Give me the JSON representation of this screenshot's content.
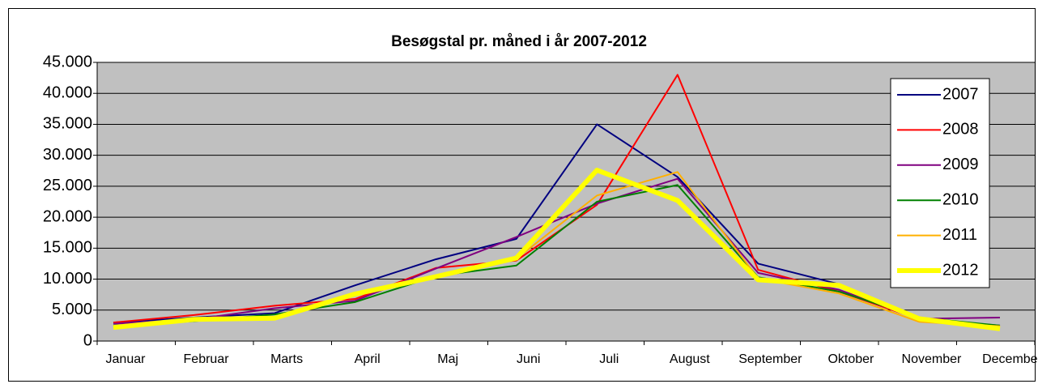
{
  "chart_data": {
    "type": "line",
    "title": "Besøgstal pr. måned i år 2007-2012",
    "categories": [
      "Januar",
      "Februar",
      "Marts",
      "April",
      "Maj",
      "Juni",
      "Juli",
      "August",
      "September",
      "Oktober",
      "November",
      "December"
    ],
    "series": [
      {
        "name": "2007",
        "color": "#000080",
        "width": 2,
        "values": [
          3000,
          3800,
          4500,
          9000,
          13200,
          16500,
          35000,
          26500,
          12500,
          9200,
          3500,
          2500
        ]
      },
      {
        "name": "2008",
        "color": "#ff0000",
        "width": 2,
        "values": [
          3000,
          4200,
          5700,
          6800,
          11800,
          13000,
          22000,
          43000,
          11500,
          8000,
          3500,
          2300
        ]
      },
      {
        "name": "2009",
        "color": "#800080",
        "width": 2,
        "values": [
          2800,
          3500,
          5300,
          6500,
          11700,
          16800,
          22200,
          26200,
          11000,
          8300,
          3600,
          3800
        ]
      },
      {
        "name": "2010",
        "color": "#008000",
        "width": 2,
        "values": [
          2500,
          3200,
          4300,
          6300,
          10500,
          12200,
          22500,
          25200,
          10300,
          8000,
          3800,
          2500
        ]
      },
      {
        "name": "2011",
        "color": "#ffb000",
        "width": 2,
        "values": [
          2200,
          3400,
          3800,
          7500,
          10300,
          13300,
          23500,
          27300,
          10100,
          7700,
          3100,
          2400
        ]
      },
      {
        "name": "2012",
        "color": "#ffff00",
        "width": 6,
        "values": [
          2200,
          3500,
          3700,
          7600,
          10400,
          13400,
          27600,
          22700,
          9900,
          9000,
          3600,
          2000
        ]
      }
    ],
    "ylim": [
      0,
      45000
    ],
    "yticks": [
      0,
      {
        "value": 5000,
        "label": "5.000"
      },
      {
        "value": 10000,
        "label": "10.000"
      },
      {
        "value": 15000,
        "label": "15.000"
      },
      {
        "value": 20000,
        "label": "20.000"
      },
      {
        "value": 25000,
        "label": "25.000"
      },
      {
        "value": 30000,
        "label": "30.000"
      },
      {
        "value": 35000,
        "label": "35.000"
      },
      {
        "value": 40000,
        "label": "40.000"
      },
      {
        "value": 45000,
        "label": "45.000"
      }
    ],
    "grid": true,
    "legend": "right",
    "background": "#c0c0c0"
  }
}
